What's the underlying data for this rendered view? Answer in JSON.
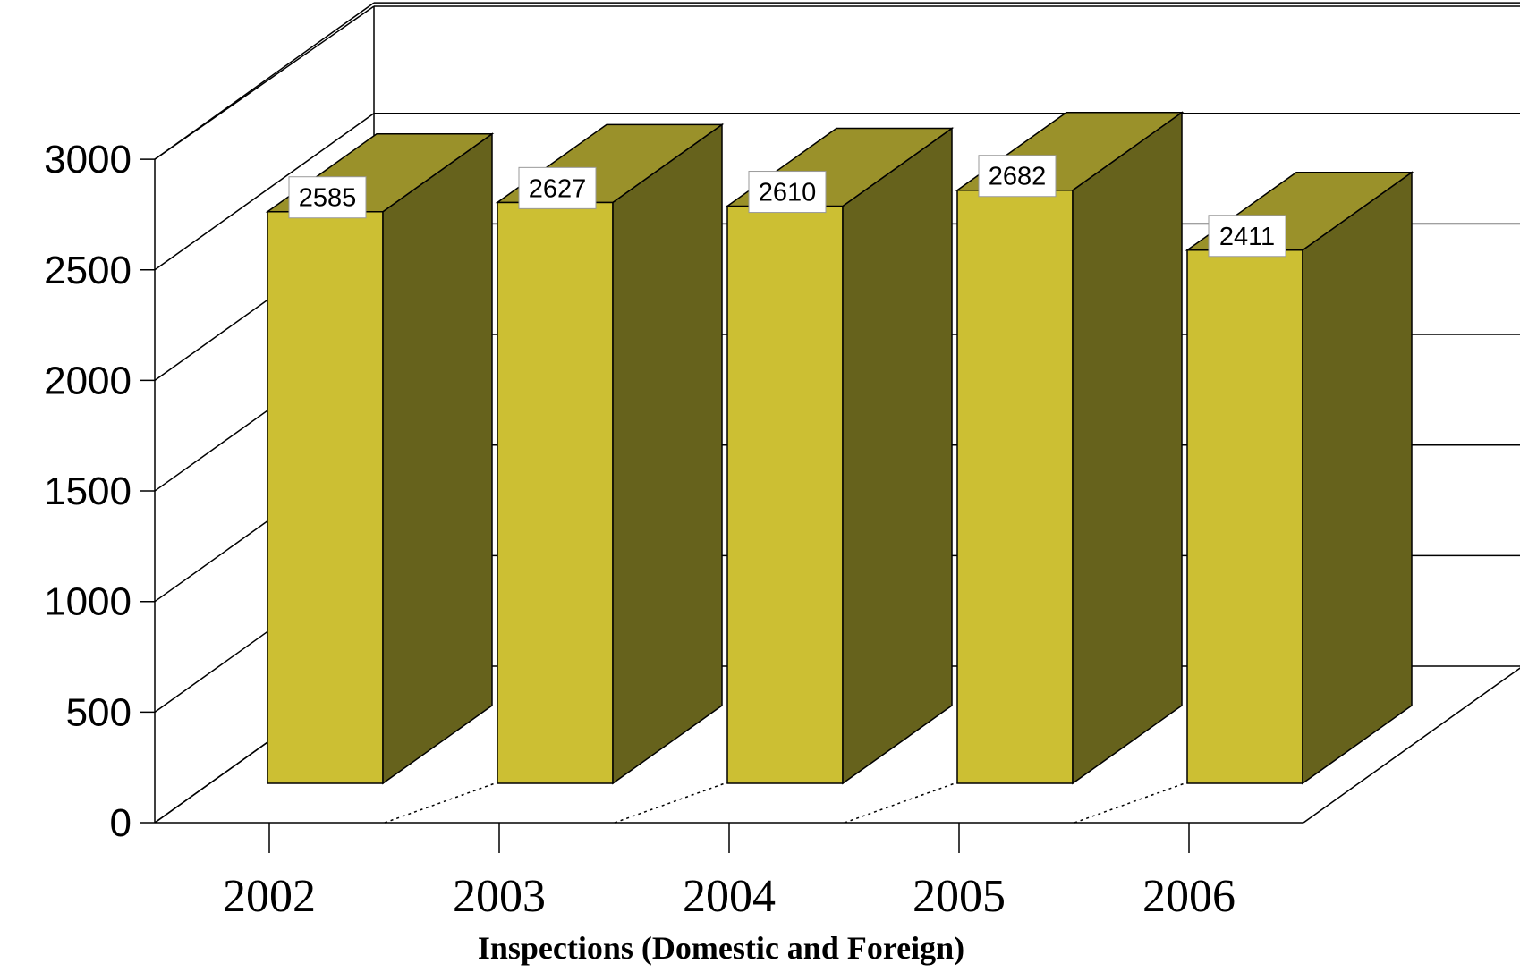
{
  "chart_data": {
    "type": "bar",
    "title": "",
    "xlabel": "Inspections (Domestic and Foreign)",
    "ylabel": "",
    "categories": [
      "2002",
      "2003",
      "2004",
      "2005",
      "2006"
    ],
    "values": [
      2585,
      2627,
      2610,
      2682,
      2411
    ],
    "data_labels": [
      "2585",
      "2627",
      "2610",
      "2682",
      "2411"
    ],
    "yticks": [
      0,
      500,
      1000,
      1500,
      2000,
      2500,
      3000
    ],
    "ytick_labels": [
      "0",
      "500",
      "1000",
      "1500",
      "2000",
      "2500",
      "3000"
    ],
    "ylim": [
      0,
      3000
    ],
    "grid": true,
    "legend": "none",
    "style": "3d",
    "colors": {
      "bar_front": "#CCBF33",
      "bar_top": "#9A912A",
      "bar_side": "#66621C",
      "frame": "#000000"
    }
  }
}
